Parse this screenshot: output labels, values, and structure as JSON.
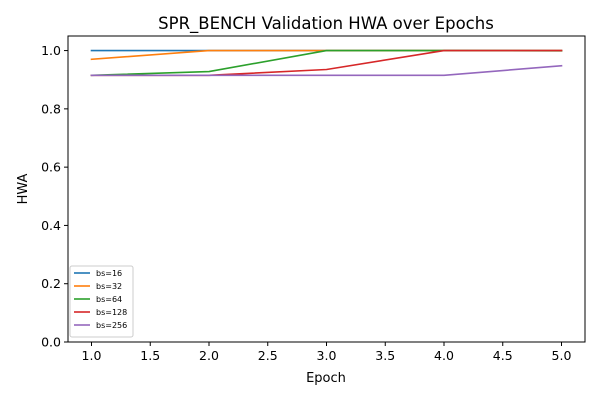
{
  "chart_data": {
    "type": "line",
    "title": "SPR_BENCH Validation HWA over Epochs",
    "xlabel": "Epoch",
    "ylabel": "HWA",
    "x": [
      1,
      2,
      3,
      4,
      5
    ],
    "xlim": [
      0.8,
      5.2
    ],
    "ylim": [
      0,
      1.05
    ],
    "xticks": [
      "1.0",
      "1.5",
      "2.0",
      "2.5",
      "3.0",
      "3.5",
      "4.0",
      "4.5",
      "5.0"
    ],
    "yticks": [
      "0.0",
      "0.2",
      "0.4",
      "0.6",
      "0.8",
      "1.0"
    ],
    "grid": false,
    "legend": "lower-left",
    "series": [
      {
        "name": "bs=16",
        "color": "#1f77b4",
        "values": [
          1.0,
          1.0,
          1.0,
          1.0,
          1.0
        ]
      },
      {
        "name": "bs=32",
        "color": "#ff7f0e",
        "values": [
          0.97,
          1.0,
          1.0,
          1.0,
          1.0
        ]
      },
      {
        "name": "bs=64",
        "color": "#2ca02c",
        "values": [
          0.915,
          0.928,
          1.0,
          1.0,
          0.999
        ]
      },
      {
        "name": "bs=128",
        "color": "#d62728",
        "values": [
          0.915,
          0.915,
          0.935,
          1.0,
          1.0
        ]
      },
      {
        "name": "bs=256",
        "color": "#9467bd",
        "values": [
          0.915,
          0.915,
          0.915,
          0.915,
          0.948
        ]
      }
    ]
  }
}
